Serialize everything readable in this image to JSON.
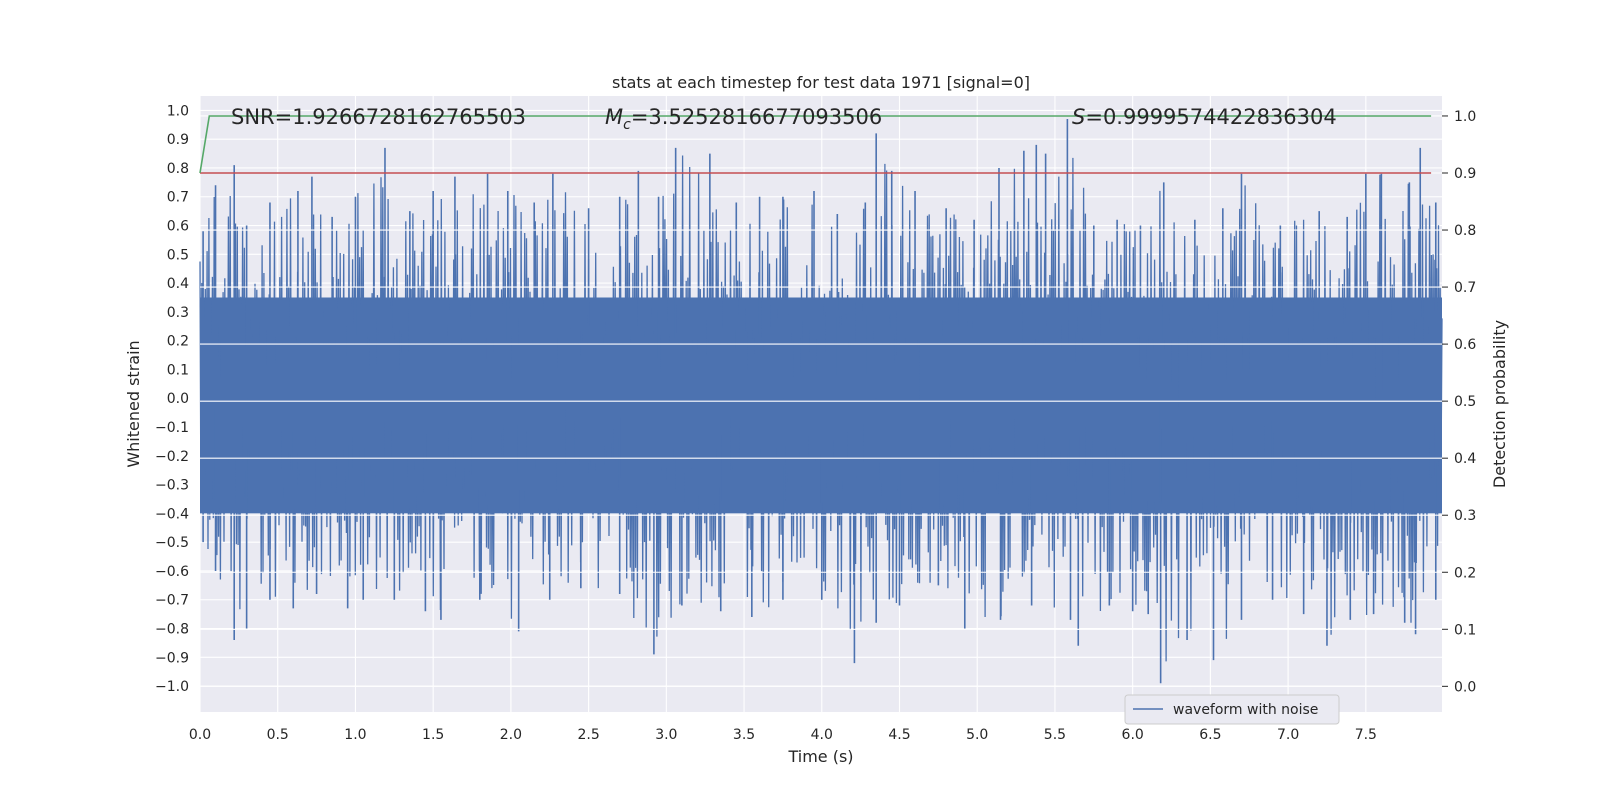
{
  "chart_data": {
    "type": "line",
    "title": "stats at each timestep for test data 1971 [signal=0]",
    "xlabel": "Time (s)",
    "ylabel": "Whitened strain",
    "y2label": "Detection probability",
    "xlim": [
      0.0,
      7.99
    ],
    "ylim": [
      -1.09,
      1.05
    ],
    "y2lim": [
      -0.045,
      1.035
    ],
    "x_ticks": [
      "0.0",
      "0.5",
      "1.0",
      "1.5",
      "2.0",
      "2.5",
      "3.0",
      "3.5",
      "4.0",
      "4.5",
      "5.0",
      "5.5",
      "6.0",
      "6.5",
      "7.0",
      "7.5"
    ],
    "y_ticks": [
      "1.0",
      "0.9",
      "0.8",
      "0.7",
      "0.6",
      "0.5",
      "0.4",
      "0.3",
      "0.2",
      "0.1",
      "0.0",
      "−0.1",
      "−0.2",
      "−0.3",
      "−0.4",
      "−0.5",
      "−0.6",
      "−0.7",
      "−0.8",
      "−0.9",
      "−1.0"
    ],
    "y2_ticks": [
      "1.0",
      "0.9",
      "0.8",
      "0.7",
      "0.6",
      "0.5",
      "0.4",
      "0.3",
      "0.2",
      "0.1",
      "0.0"
    ],
    "grid": true,
    "legend_position": "lower-right",
    "annotations": {
      "snr": "SNR=1.9266728162765503",
      "mc_symbol": "M",
      "mc_sub": "c",
      "mc_value": "=3.5252816677093506",
      "s_symbol": "S",
      "s_value": "=0.9999574422836304"
    },
    "series": [
      {
        "name": "waveform with noise",
        "axis": "left",
        "color": "#4c72b0",
        "description_of_values": "dense noise, sample points listed as envelope peaks",
        "peaks_upper": [
          [
            0.02,
            0.58
          ],
          [
            0.1,
            0.74
          ],
          [
            0.22,
            0.81
          ],
          [
            0.3,
            0.6
          ],
          [
            0.45,
            0.68
          ],
          [
            0.63,
            0.72
          ],
          [
            0.72,
            0.77
          ],
          [
            0.85,
            0.63
          ],
          [
            1.0,
            0.7
          ],
          [
            1.19,
            0.87
          ],
          [
            1.35,
            0.65
          ],
          [
            1.5,
            0.72
          ],
          [
            1.64,
            0.77
          ],
          [
            1.85,
            0.78
          ],
          [
            1.98,
            0.72
          ],
          [
            2.15,
            0.68
          ],
          [
            2.27,
            0.78
          ],
          [
            2.5,
            0.66
          ],
          [
            2.7,
            0.7
          ],
          [
            2.82,
            0.79
          ],
          [
            2.95,
            0.7
          ],
          [
            3.06,
            0.87
          ],
          [
            3.28,
            0.85
          ],
          [
            3.45,
            0.68
          ],
          [
            3.6,
            0.7
          ],
          [
            3.75,
            0.7
          ],
          [
            3.95,
            0.72
          ],
          [
            4.1,
            0.64
          ],
          [
            4.28,
            0.68
          ],
          [
            4.35,
            0.92
          ],
          [
            4.45,
            0.79
          ],
          [
            4.6,
            0.72
          ],
          [
            4.8,
            0.66
          ],
          [
            4.98,
            0.62
          ],
          [
            5.14,
            0.8
          ],
          [
            5.3,
            0.86
          ],
          [
            5.38,
            0.88
          ],
          [
            5.44,
            0.85
          ],
          [
            5.58,
            0.97
          ],
          [
            5.75,
            0.6
          ],
          [
            5.9,
            0.62
          ],
          [
            6.05,
            0.6
          ],
          [
            6.2,
            0.75
          ],
          [
            6.4,
            0.62
          ],
          [
            6.58,
            0.66
          ],
          [
            6.7,
            0.78
          ],
          [
            6.95,
            0.6
          ],
          [
            7.2,
            0.65
          ],
          [
            7.38,
            0.63
          ],
          [
            7.5,
            0.78
          ],
          [
            7.6,
            0.78
          ],
          [
            7.78,
            0.75
          ],
          [
            7.85,
            0.87
          ],
          [
            7.95,
            0.68
          ]
        ],
        "peaks_lower": [
          [
            0.02,
            -0.5
          ],
          [
            0.1,
            -0.6
          ],
          [
            0.22,
            -0.84
          ],
          [
            0.3,
            -0.8
          ],
          [
            0.45,
            -0.7
          ],
          [
            0.6,
            -0.73
          ],
          [
            0.75,
            -0.68
          ],
          [
            0.95,
            -0.73
          ],
          [
            1.05,
            -0.7
          ],
          [
            1.25,
            -0.7
          ],
          [
            1.45,
            -0.74
          ],
          [
            1.55,
            -0.77
          ],
          [
            1.8,
            -0.7
          ],
          [
            2.05,
            -0.81
          ],
          [
            2.25,
            -0.7
          ],
          [
            2.45,
            -0.66
          ],
          [
            2.7,
            -0.68
          ],
          [
            2.92,
            -0.89
          ],
          [
            3.1,
            -0.72
          ],
          [
            3.35,
            -0.74
          ],
          [
            3.55,
            -0.76
          ],
          [
            3.75,
            -0.7
          ],
          [
            4.0,
            -0.7
          ],
          [
            4.21,
            -0.92
          ],
          [
            4.35,
            -0.78
          ],
          [
            4.5,
            -0.72
          ],
          [
            4.75,
            -0.65
          ],
          [
            4.92,
            -0.8
          ],
          [
            5.15,
            -0.77
          ],
          [
            5.35,
            -0.72
          ],
          [
            5.6,
            -0.77
          ],
          [
            5.65,
            -0.86
          ],
          [
            5.85,
            -0.72
          ],
          [
            6.0,
            -0.74
          ],
          [
            6.1,
            -0.75
          ],
          [
            6.18,
            -0.99
          ],
          [
            6.35,
            -0.84
          ],
          [
            6.52,
            -0.91
          ],
          [
            6.7,
            -0.77
          ],
          [
            6.9,
            -0.7
          ],
          [
            7.1,
            -0.75
          ],
          [
            7.25,
            -0.86
          ],
          [
            7.4,
            -0.77
          ],
          [
            7.55,
            -0.75
          ],
          [
            7.75,
            -0.78
          ],
          [
            7.82,
            -0.82
          ],
          [
            7.95,
            -0.7
          ]
        ],
        "body_range": [
          -0.4,
          0.35
        ]
      },
      {
        "name": "",
        "axis": "right",
        "color": "#55a868",
        "x": [
          0.0,
          0.06,
          7.92
        ],
        "y": [
          0.9,
          1.0,
          1.0
        ]
      },
      {
        "name": "",
        "axis": "right",
        "color": "#c44e52",
        "x": [
          0.0,
          7.92
        ],
        "y": [
          0.9,
          0.9
        ]
      }
    ]
  }
}
